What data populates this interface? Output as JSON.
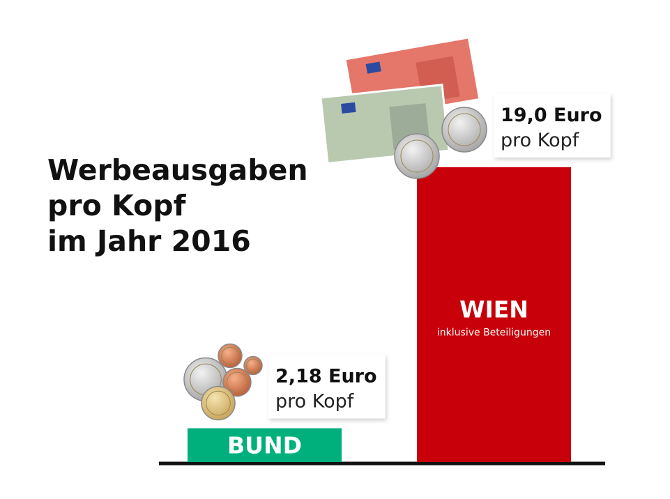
{
  "chart_data": {
    "type": "bar",
    "title_lines": [
      "Werbeausgaben",
      "pro Kopf",
      "im Jahr 2016"
    ],
    "categories": [
      "BUND",
      "WIEN"
    ],
    "category_notes": [
      null,
      "inklusive Beteiligungen"
    ],
    "values": [
      2.18,
      19.0
    ],
    "value_labels": [
      "2,18 Euro",
      "19,0 Euro"
    ],
    "unit_label": "pro Kopf",
    "colors": [
      "#00b07c",
      "#c8000a"
    ]
  }
}
